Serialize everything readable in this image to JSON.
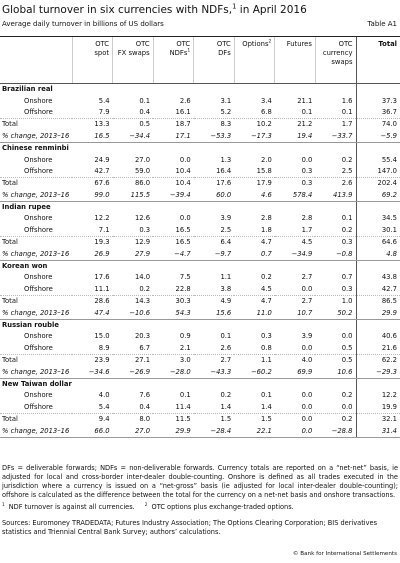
{
  "header": {
    "title": {
      "before": "Global turnover in six currencies with NDFs,",
      "sup": "1",
      "after": " in April 2016"
    },
    "table_id": "Table A1",
    "subtitle": "Average daily turnover in billions of US dollars"
  },
  "table": {
    "columns": [
      {
        "lines": [
          "OTC",
          "spot"
        ]
      },
      {
        "lines": [
          "OTC",
          "FX swaps"
        ]
      },
      {
        "lines": [
          "OTC",
          "NDFs"
        ],
        "sup": "1"
      },
      {
        "lines": [
          "OTC",
          "DFs"
        ]
      },
      {
        "lines": [
          "Options"
        ],
        "sup": "2"
      },
      {
        "lines": [
          "Futures"
        ]
      },
      {
        "lines": [
          "OTC",
          "currency",
          "swaps"
        ]
      },
      {
        "lines": [
          "Total"
        ]
      }
    ],
    "blocks": [
      {
        "name": "Brazilian real",
        "rows": [
          {
            "label": "Onshore",
            "values": [
              "5.4",
              "0.1",
              "2.6",
              "3.1",
              "3.4",
              "21.1",
              "1.6",
              "37.3"
            ]
          },
          {
            "label": "Offshore",
            "values": [
              "7.9",
              "0.4",
              "16.1",
              "5.2",
              "6.8",
              "0.1",
              "0.1",
              "36.7"
            ]
          },
          {
            "label": "Total",
            "values": [
              "13.3",
              "0.5",
              "18.7",
              "8.3",
              "10.2",
              "21.2",
              "1.7",
              "74.0"
            ]
          },
          {
            "label": "% change, 2013–16",
            "values": [
              "16.5",
              "−34.4",
              "17.1",
              "−53.3",
              "−17.3",
              "19.4",
              "−33.7",
              "−5.9"
            ]
          }
        ]
      },
      {
        "name": "Chinese renminbi",
        "rows": [
          {
            "label": "Onshore",
            "values": [
              "24.9",
              "27.0",
              "0.0",
              "1.3",
              "2.0",
              "0.0",
              "0.2",
              "55.4"
            ]
          },
          {
            "label": "Offshore",
            "values": [
              "42.7",
              "59.0",
              "10.4",
              "16.4",
              "15.8",
              "0.3",
              "2.5",
              "147.0"
            ]
          },
          {
            "label": "Total",
            "values": [
              "67.6",
              "86.0",
              "10.4",
              "17.6",
              "17.9",
              "0.3",
              "2.6",
              "202.4"
            ]
          },
          {
            "label": "% change, 2013–16",
            "values": [
              "99.0",
              "115.5",
              "−39.4",
              "60.0",
              "4.6",
              "578.4",
              "413.9",
              "69.2"
            ]
          }
        ]
      },
      {
        "name": "Indian rupee",
        "rows": [
          {
            "label": "Onshore",
            "values": [
              "12.2",
              "12.6",
              "0.0",
              "3.9",
              "2.8",
              "2.8",
              "0.1",
              "34.5"
            ]
          },
          {
            "label": "Offshore",
            "values": [
              "7.1",
              "0.3",
              "16.5",
              "2.5",
              "1.8",
              "1.7",
              "0.2",
              "30.1"
            ]
          },
          {
            "label": "Total",
            "values": [
              "19.3",
              "12.9",
              "16.5",
              "6.4",
              "4.7",
              "4.5",
              "0.3",
              "64.6"
            ]
          },
          {
            "label": "% change, 2013–16",
            "values": [
              "26.9",
              "27.9",
              "−4.7",
              "−9.7",
              "0.7",
              "−34.9",
              "−0.8",
              "4.8"
            ]
          }
        ]
      },
      {
        "name": "Korean won",
        "rows": [
          {
            "label": "Onshore",
            "values": [
              "17.6",
              "14.0",
              "7.5",
              "1.1",
              "0.2",
              "2.7",
              "0.7",
              "43.8"
            ]
          },
          {
            "label": "Offshore",
            "values": [
              "11.1",
              "0.2",
              "22.8",
              "3.8",
              "4.5",
              "0.0",
              "0.3",
              "42.7"
            ]
          },
          {
            "label": "Total",
            "values": [
              "28.6",
              "14.3",
              "30.3",
              "4.9",
              "4.7",
              "2.7",
              "1.0",
              "86.5"
            ]
          },
          {
            "label": "% change, 2013–16",
            "values": [
              "47.4",
              "−10.6",
              "54.3",
              "15.6",
              "11.0",
              "10.7",
              "50.2",
              "29.9"
            ]
          }
        ]
      },
      {
        "name": "Russian rouble",
        "rows": [
          {
            "label": "Onshore",
            "values": [
              "15.0",
              "20.3",
              "0.9",
              "0.1",
              "0.3",
              "3.9",
              "0.0",
              "40.6"
            ]
          },
          {
            "label": "Offshore",
            "values": [
              "8.9",
              "6.7",
              "2.1",
              "2.6",
              "0.8",
              "0.0",
              "0.5",
              "21.6"
            ]
          },
          {
            "label": "Total",
            "values": [
              "23.9",
              "27.1",
              "3.0",
              "2.7",
              "1.1",
              "4.0",
              "0.5",
              "62.2"
            ]
          },
          {
            "label": "% change, 2013–16",
            "values": [
              "−34.6",
              "−26.9",
              "−28.0",
              "−43.3",
              "−60.2",
              "69.9",
              "10.6",
              "−29.3"
            ]
          }
        ]
      },
      {
        "name": "New Taiwan dollar",
        "rows": [
          {
            "label": "Onshore",
            "values": [
              "4.0",
              "7.6",
              "0.1",
              "0.2",
              "0.1",
              "0.0",
              "0.2",
              "12.2"
            ]
          },
          {
            "label": "Offshore",
            "values": [
              "5.4",
              "0.4",
              "11.4",
              "1.4",
              "1.4",
              "0.0",
              "0.0",
              "19.9"
            ]
          },
          {
            "label": "Total",
            "values": [
              "9.4",
              "8.0",
              "11.5",
              "1.5",
              "1.5",
              "0.0",
              "0.2",
              "32.1"
            ]
          },
          {
            "label": "% change, 2013–16",
            "values": [
              "66.0",
              "27.0",
              "29.9",
              "−28.4",
              "22.1",
              "0.0",
              "−28.8",
              "31.4"
            ]
          }
        ]
      }
    ]
  },
  "notes": "DFs = deliverable forwards; NDFs = non-deliverable forwards. Currency totals are reported on a “net-net” basis, ie adjusted for local and cross-border inter-dealer double-counting. Onshore is defined as all trades executed in the jurisdiction where a currency is issued on a “net-gross” basis (ie adjusted for local inter-dealer double-counting); offshore is calculated as the difference between the total for the currency on a net-net basis and onshore transactions.",
  "footnotes": [
    {
      "mark": "1",
      "text": "NDF turnover is against all currencies."
    },
    {
      "mark": "2",
      "text": "OTC options plus exchange-traded options."
    }
  ],
  "sources": "Sources: Euromoney TRADEDATA; Futures Industry Association; The Options Clearing Corporation; BIS derivatives statistics and Triennial Central Bank Survey; authors’ calculations.",
  "copyright": "© Bank for International Settlements"
}
